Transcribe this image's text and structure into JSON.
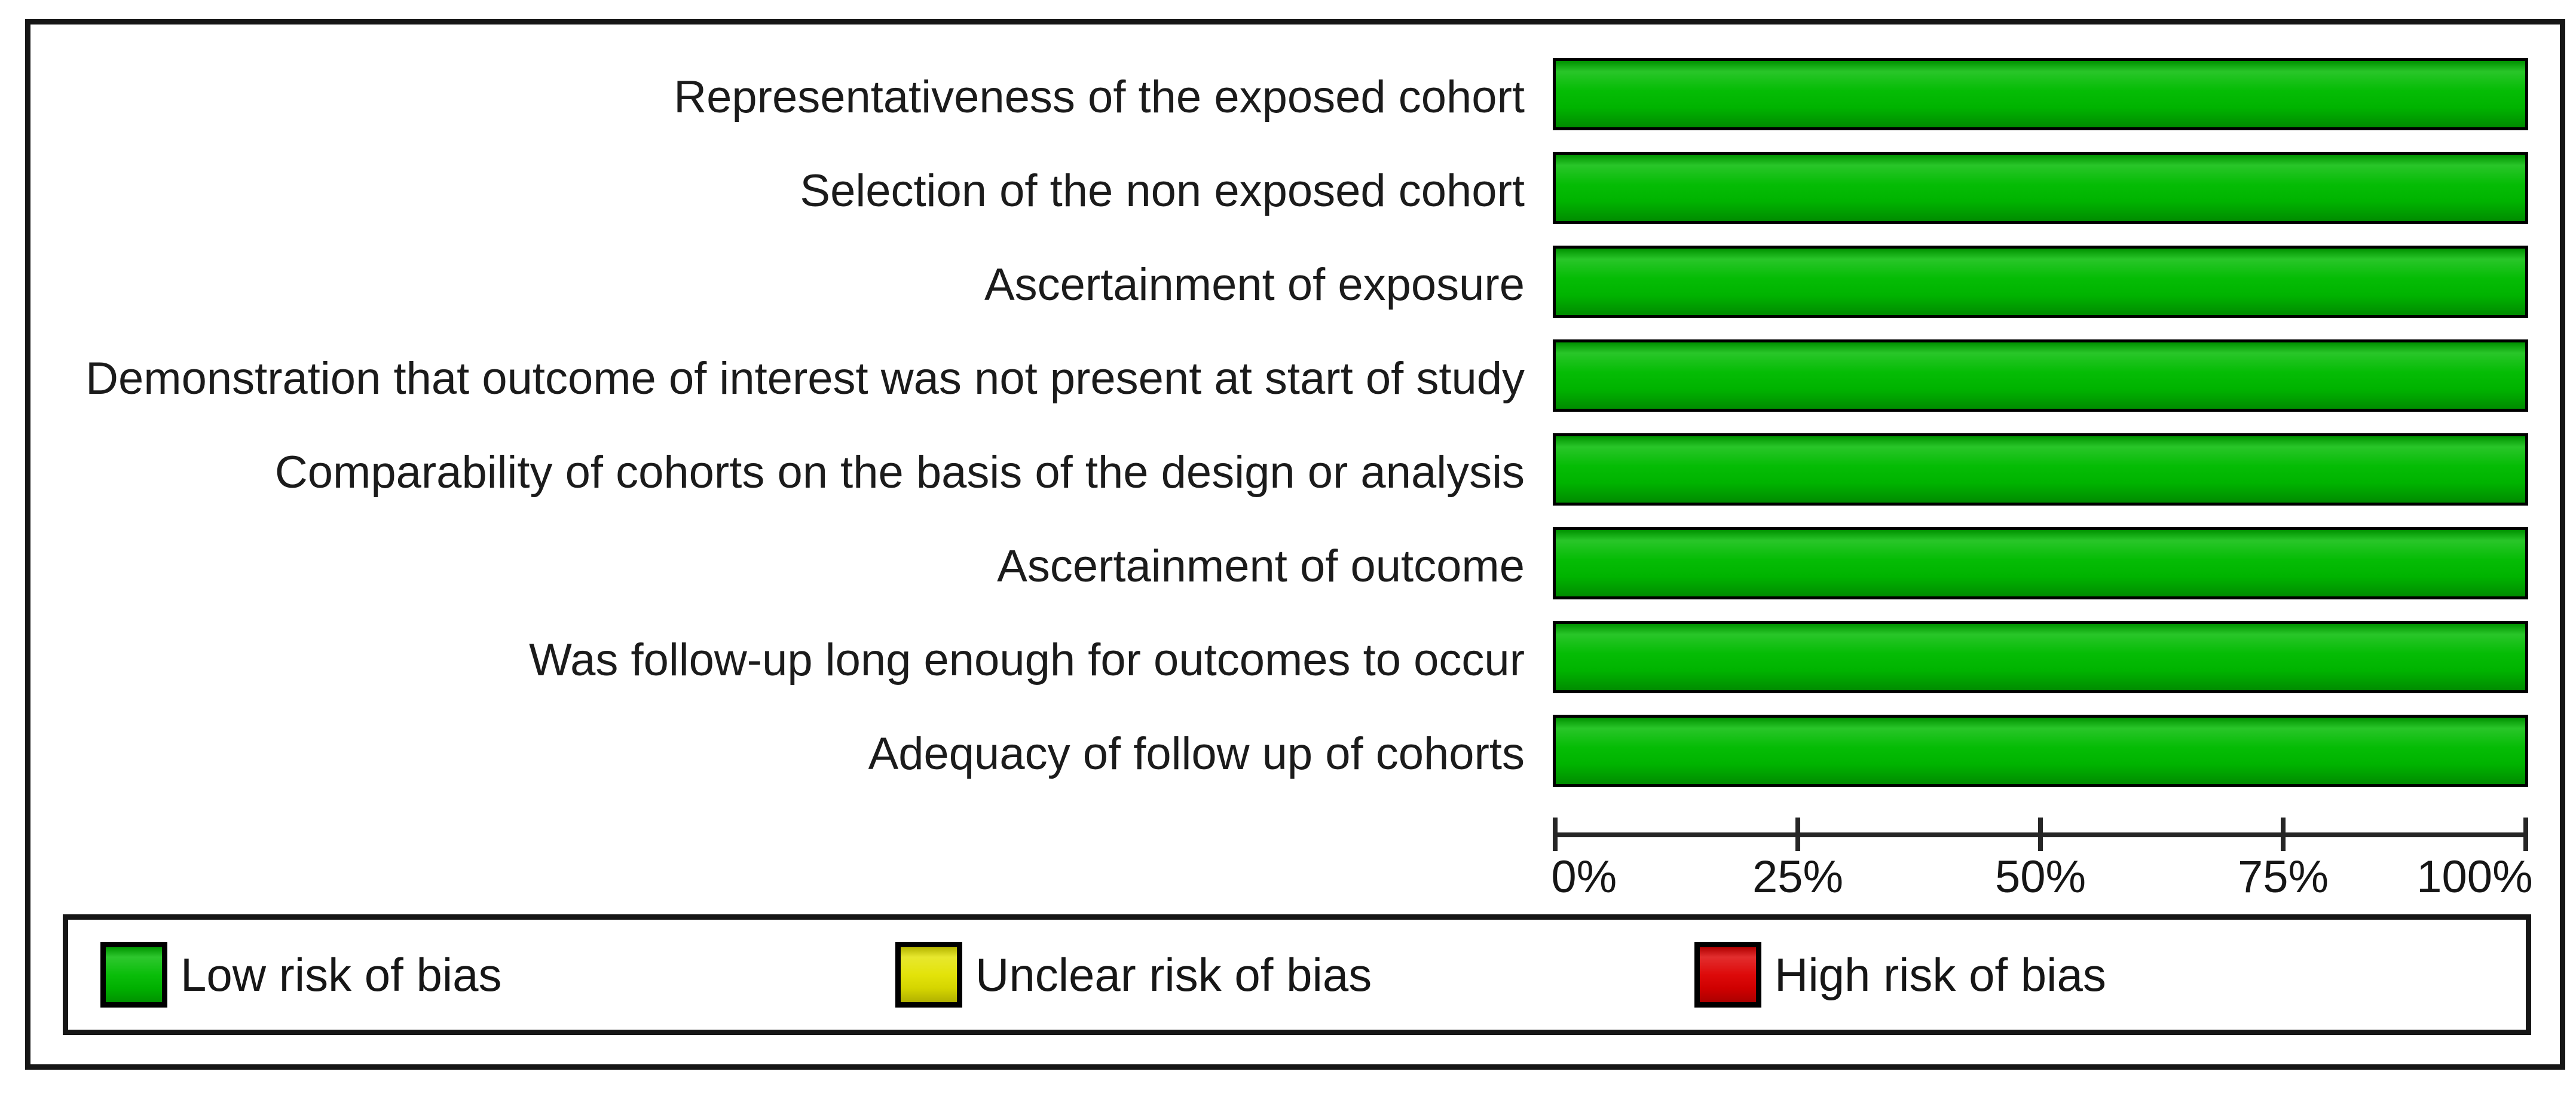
{
  "chart_data": {
    "type": "bar",
    "orientation": "horizontal",
    "stacked_percent": true,
    "title": "",
    "xlabel": "",
    "ylabel": "",
    "xlim": [
      0,
      100
    ],
    "x_ticks": [
      "0%",
      "25%",
      "50%",
      "75%",
      "100%"
    ],
    "grid": false,
    "legend_position": "bottom",
    "categories": [
      "Representativeness of the exposed cohort",
      "Selection of the non exposed cohort",
      "Ascertainment of exposure",
      "Demonstration that outcome of interest was not present at start of study",
      "Comparability of cohorts on the basis of the design or analysis",
      "Ascertainment of outcome",
      "Was follow-up long enough for outcomes to occur",
      "Adequacy of follow up of cohorts"
    ],
    "series": [
      {
        "name": "Low risk of bias",
        "color": "#00BB00",
        "values": [
          100,
          100,
          100,
          100,
          100,
          100,
          100,
          100
        ]
      },
      {
        "name": "Unclear risk of bias",
        "color": "#E2E200",
        "values": [
          0,
          0,
          0,
          0,
          0,
          0,
          0,
          0
        ]
      },
      {
        "name": "High risk of bias",
        "color": "#DC0000",
        "values": [
          0,
          0,
          0,
          0,
          0,
          0,
          0,
          0
        ]
      }
    ]
  },
  "colors": {
    "frame_border": "#161616",
    "axis": "#262626",
    "text": "#1b1b1b"
  }
}
